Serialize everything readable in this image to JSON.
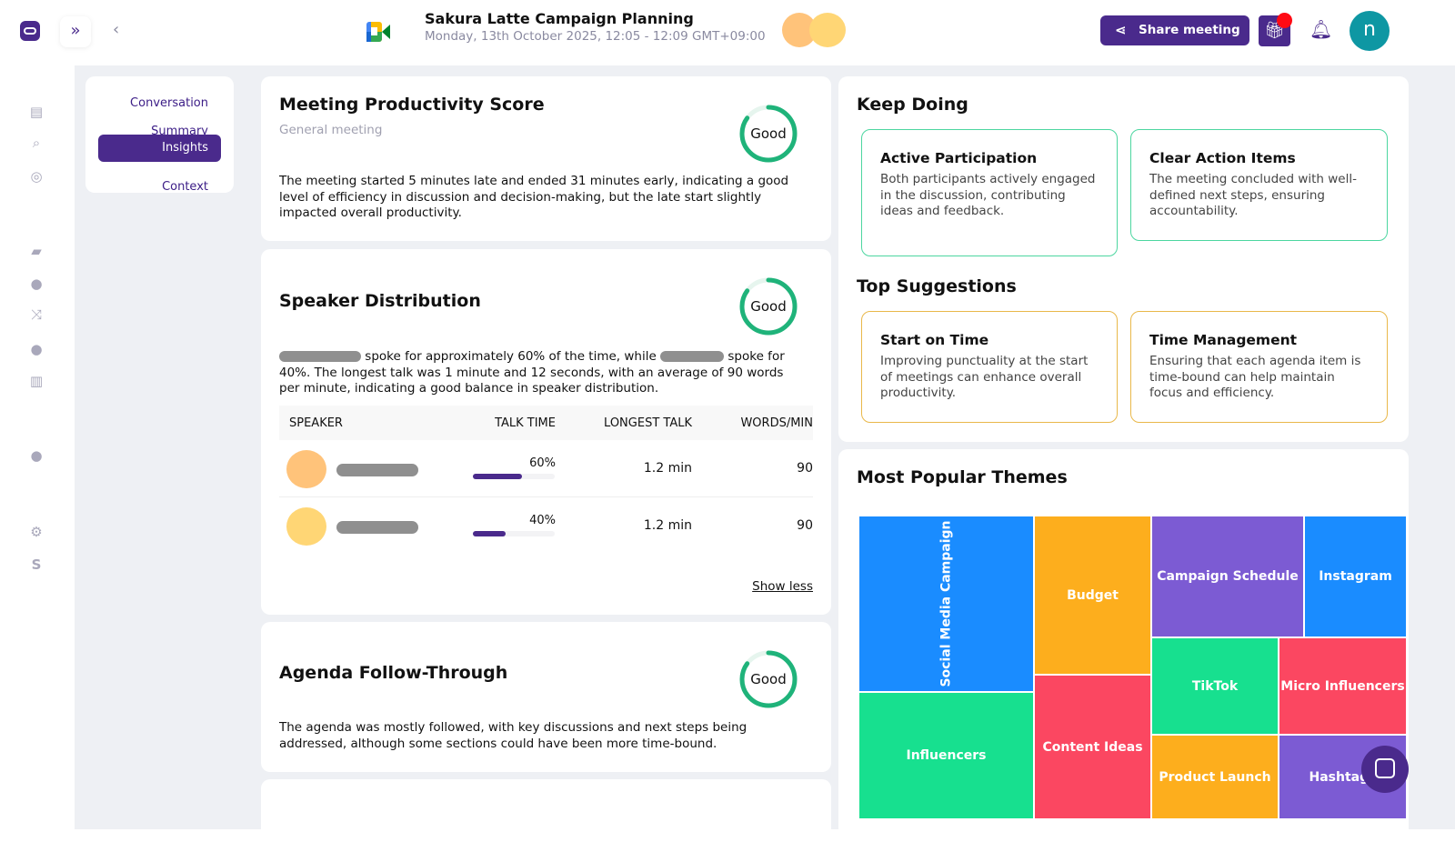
{
  "header": {
    "title": "Sakura Latte Campaign Planning",
    "subtitle": "Monday, 13th October 2025, 12:05 - 12:09 GMT+09:00",
    "share_label": "Share meeting",
    "avatar_letter": "n"
  },
  "nav": {
    "items": [
      {
        "label": "Conversation"
      },
      {
        "label": "Summary"
      },
      {
        "label": "Insights",
        "active": true
      },
      {
        "label": "Context"
      }
    ]
  },
  "productivity": {
    "title": "Meeting Productivity Score",
    "subtitle": "General meeting",
    "rating": "Good",
    "score_fraction": 0.85,
    "text": "The meeting started 5 minutes late and ended 31 minutes early, indicating a good level of efficiency in discussion and decision-making, but the late start slightly impacted overall productivity."
  },
  "speaker": {
    "title": "Speaker Distribution",
    "rating": "Good",
    "score_fraction": 0.85,
    "text_a": "spoke for approximately 60% of the time, while",
    "text_b": "spoke for",
    "text_c": "40%. The longest talk was 1 minute and 12 seconds, with an average of 90 words per minute, indicating a good balance in speaker distribution.",
    "columns": [
      "SPEAKER",
      "TALK TIME",
      "LONGEST TALK",
      "WORDS/MIN"
    ],
    "rows": [
      {
        "talk": "60%",
        "talk_fraction": 0.6,
        "longest": "1.2 min",
        "wpm": "90",
        "color": "#ffc37a"
      },
      {
        "talk": "40%",
        "talk_fraction": 0.4,
        "longest": "1.2 min",
        "wpm": "90",
        "color": "#ffd675"
      }
    ],
    "show_less": "Show less"
  },
  "agenda": {
    "title": "Agenda Follow-Through",
    "rating": "Good",
    "score_fraction": 0.85,
    "text": "The agenda was mostly followed, with key discussions and next steps being addressed, although some sections could have been more time-bound."
  },
  "keep_doing": {
    "title": "Keep Doing",
    "items": [
      {
        "title": "Active Participation",
        "text": "Both participants actively engaged in the discussion, contributing ideas and feedback."
      },
      {
        "title": "Clear Action Items",
        "text": "The meeting concluded with well-defined next steps, ensuring accountability."
      }
    ]
  },
  "suggestions": {
    "title": "Top Suggestions",
    "items": [
      {
        "title": "Start on Time",
        "text": "Improving punctuality at the start of meetings can enhance overall productivity."
      },
      {
        "title": "Time Management",
        "text": "Ensuring that each agenda item is time-bound can help maintain focus and efficiency."
      }
    ]
  },
  "themes": {
    "title": "Most Popular Themes",
    "items": [
      "Social Media Campaign",
      "Influencers",
      "Budget",
      "Content Ideas",
      "Campaign Schedule",
      "Instagram",
      "TikTok",
      "Micro Influencers",
      "Product Launch",
      "Hashtags"
    ]
  },
  "colors": {
    "accent": "#4a2a8c",
    "good": "#1fb37a",
    "green_border": "#4cd6a0",
    "amber_border": "#e9b84a",
    "blue": "#1a8cff",
    "green": "#17e08f",
    "orange": "#fdae1d",
    "red": "#fb4761",
    "purple": "#7c5bd3"
  }
}
